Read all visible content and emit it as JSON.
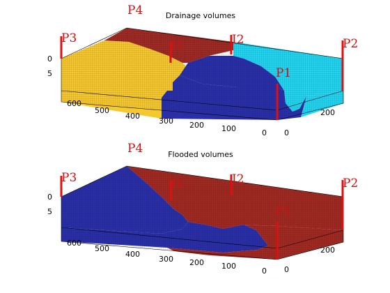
{
  "chart_data": [
    {
      "type": "3d-volume",
      "title": "Drainage volumes",
      "x_ticks": [
        "600",
        "500",
        "400",
        "300",
        "200",
        "100",
        "0"
      ],
      "y_ticks": [
        "0",
        "200"
      ],
      "z_ticks": [
        "0",
        "5"
      ],
      "wells": [
        {
          "label": "P3",
          "position": [
            660,
            0
          ]
        },
        {
          "label": "P4",
          "position": [
            660,
            300
          ]
        },
        {
          "label": "I1",
          "position": [
            330,
            150
          ]
        },
        {
          "label": "I2",
          "position": [
            0,
            300
          ]
        },
        {
          "label": "P2",
          "position": [
            0,
            300
          ]
        },
        {
          "label": "P1",
          "position": [
            0,
            0
          ]
        }
      ],
      "regions": [
        {
          "well": "P4",
          "color": "#9e2a25"
        },
        {
          "well": "P3",
          "color": "#f5c830"
        },
        {
          "well": "P2",
          "color": "#22d4f0"
        },
        {
          "well": "P1",
          "color": "#2a2fa8"
        }
      ],
      "colors": {
        "top_edge_dark": "#8b8bd6"
      }
    },
    {
      "type": "3d-volume",
      "title": "Flooded volumes",
      "x_ticks": [
        "600",
        "500",
        "400",
        "300",
        "200",
        "100",
        "0"
      ],
      "y_ticks": [
        "0",
        "200"
      ],
      "z_ticks": [
        "0",
        "5"
      ],
      "wells": [
        {
          "label": "P3",
          "position": [
            660,
            0
          ]
        },
        {
          "label": "P4",
          "position": [
            660,
            300
          ]
        },
        {
          "label": "I1",
          "position": [
            330,
            150
          ]
        },
        {
          "label": "I2",
          "position": [
            0,
            300
          ]
        },
        {
          "label": "P2",
          "position": [
            0,
            300
          ]
        },
        {
          "label": "P1",
          "position": [
            0,
            0
          ]
        }
      ],
      "regions": [
        {
          "well": "I1",
          "color": "#2a2fa8"
        },
        {
          "well": "I2",
          "color": "#a02a22"
        }
      ]
    }
  ]
}
